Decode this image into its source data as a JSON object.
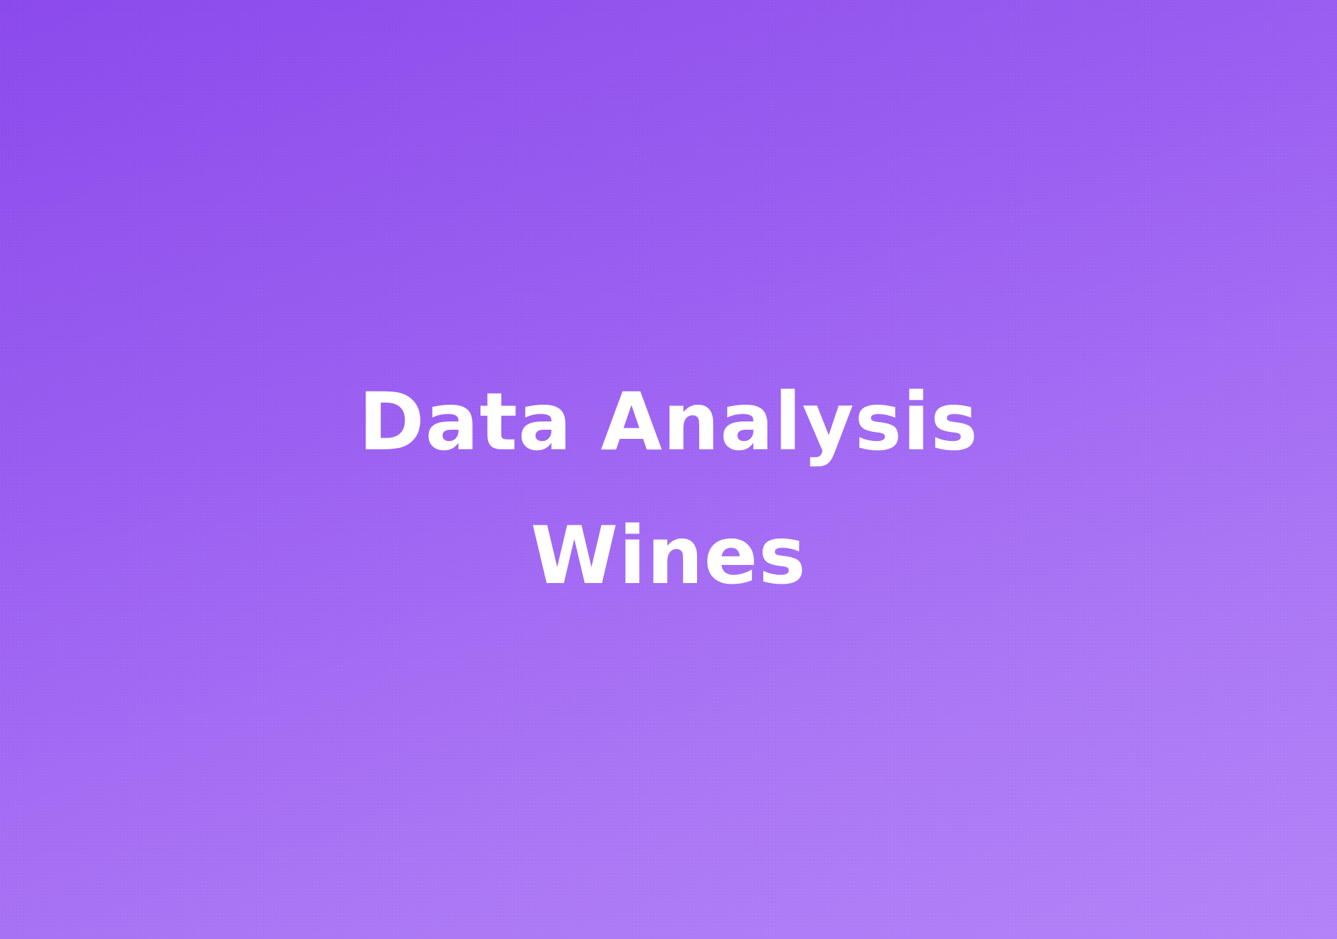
{
  "title": {
    "line1": "Data Analysis",
    "line2": "Wines"
  },
  "colors": {
    "gradient_start": "#8a47ec",
    "gradient_end": "#b282f8",
    "text": "#ffffff"
  }
}
